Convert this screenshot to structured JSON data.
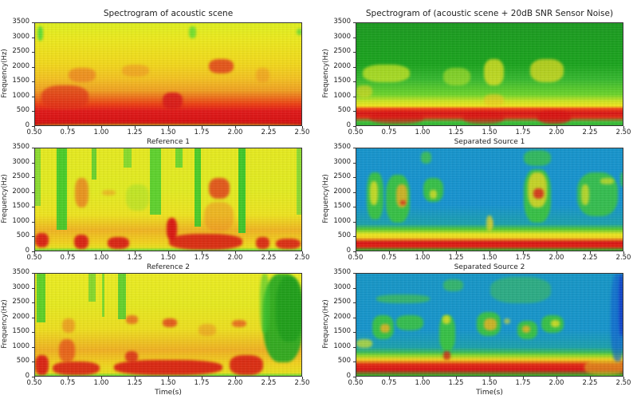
{
  "figure": {
    "xlim": [
      0.5,
      2.5
    ],
    "ylim": [
      0,
      3500
    ],
    "xticks": [
      "0.50",
      "0.75",
      "1.00",
      "1.25",
      "1.50",
      "1.75",
      "2.00",
      "2.25",
      "2.50"
    ],
    "yticks": [
      "0",
      "500",
      "1000",
      "1500",
      "2000",
      "2500",
      "3000",
      "3500"
    ],
    "ylabel": "Frequency(Hz)",
    "xlabel": "Time(s)"
  },
  "panels": [
    {
      "id": "clean-scene",
      "title": "Spectrogram of acoustic scene",
      "colormap": "green-yellow-red",
      "base": "#f3e21a",
      "low_band": "#d81010",
      "top_tint": "#e8f018"
    },
    {
      "id": "noisy-scene",
      "title": "Spectrogram of (acoustic scene + 20dB SNR Sensor Noise)",
      "colormap": "green-yellow-red",
      "base": "#1fb51f",
      "low_band": "#d81010",
      "top_tint": "#17a617"
    },
    {
      "id": "reference-1",
      "title": "Reference 1",
      "colormap": "green-yellow-red",
      "base": "#e9ec1e",
      "low_band": "#d81010",
      "top_tint": "#e3ee20"
    },
    {
      "id": "separated-source-1",
      "title": "Separated Source 1",
      "colormap": "blue-green-yellow-red",
      "base": "#1598c9",
      "low_band": "#d81010",
      "top_tint": "#1a8fd0"
    },
    {
      "id": "reference-2",
      "title": "Reference 2",
      "colormap": "green-yellow-red",
      "base": "#eaec1f",
      "low_band": "#d81010",
      "top_tint": "#e5ee20"
    },
    {
      "id": "separated-source-2",
      "title": "Separated Source 2",
      "colormap": "blue-green-yellow-red",
      "base": "#1596c6",
      "low_band": "#d81010",
      "top_tint": "#158bd0"
    }
  ],
  "chart_data": [
    {
      "type": "heatmap",
      "title": "Spectrogram of acoustic scene",
      "xlabel": "",
      "ylabel": "Frequency(Hz)",
      "xlim": [
        0.5,
        2.5
      ],
      "ylim": [
        0,
        3500
      ],
      "description": "Dense energy 0-600 Hz across full time span (red), mid-band 600-1500 Hz orange/red, upper band yellow with sparse green; hot spot near 1.85-1.95 s at ~2000 Hz"
    },
    {
      "type": "heatmap",
      "title": "Spectrogram of (acoustic scene + 20dB SNR Sensor Noise)",
      "xlabel": "",
      "ylabel": "Frequency(Hz)",
      "xlim": [
        0.5,
        2.5
      ],
      "ylim": [
        0,
        3500
      ],
      "description": "Strong red band 100-600 Hz; yellow regions 1500-2200 Hz around 0.75, 1.5, 1.9 s; background green above 1000 Hz"
    },
    {
      "type": "heatmap",
      "title": "Reference 1",
      "xlabel": "",
      "ylabel": "Frequency(Hz)",
      "xlim": [
        0.5,
        2.5
      ],
      "ylim": [
        0,
        3500
      ],
      "description": "Speech-like bursts; red low-frequency segments at 0.5-0.6, 0.8-0.9, 1.05-1.2, 1.5-2.05, 2.15-2.25, 2.3-2.5 s; green vertical gaps at ~0.7, 0.95, 1.4, 1.7, 2.05 s"
    },
    {
      "type": "heatmap",
      "title": "Separated Source 1",
      "xlabel": "",
      "ylabel": "Frequency(Hz)",
      "xlim": [
        0.5,
        2.5
      ],
      "ylim": [
        0,
        3500
      ],
      "description": "Blue background; red/yellow low band 0-600 Hz; green/yellow islands at 0.6-0.9 s, 1.0-1.15 s, 1.75-1.95 s (red ~2000 Hz), 2.15-2.45 s"
    },
    {
      "type": "heatmap",
      "title": "Reference 2",
      "xlabel": "Time(s)",
      "ylabel": "Frequency(Hz)",
      "xlim": [
        0.5,
        2.5
      ],
      "ylim": [
        0,
        3500
      ],
      "description": "Red harmonics 100-700 Hz from 0.5-2.2 s with gaps near 0.6 and 1.05 s; orange blobs ~1800-2000 Hz at 1.2, 1.5, 2.0 s; green region after 2.2 s"
    },
    {
      "type": "heatmap",
      "title": "Separated Source 2",
      "xlabel": "Time(s)",
      "ylabel": "Frequency(Hz)",
      "xlim": [
        0.5,
        2.5
      ],
      "ylim": [
        0,
        3500
      ],
      "description": "Blue background; red low band 100-600 Hz across 0.5-2.2 s; green/yellow islands 1500-2100 Hz at 0.7, 1.2, 1.5, 1.75, 2.0 s; dark blue near 2.45 s"
    }
  ]
}
